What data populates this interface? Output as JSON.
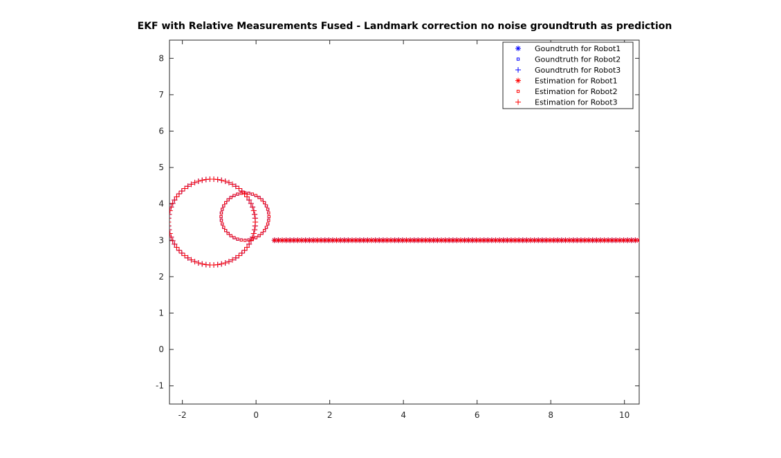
{
  "chart_data": {
    "type": "scatter",
    "title": "EKF with Relative Measurements Fused - Landmark correction no noise groundtruth as prediction",
    "xlabel": "",
    "ylabel": "",
    "xlim": [
      -2.35,
      10.4
    ],
    "ylim": [
      -1.5,
      8.5
    ],
    "x_ticks": [
      -2,
      0,
      2,
      4,
      6,
      8,
      10
    ],
    "y_ticks": [
      -1,
      0,
      1,
      2,
      3,
      4,
      5,
      6,
      7,
      8
    ],
    "grid": false,
    "legend_position": "top-right",
    "colors": {
      "groundtruth": "#0000ff",
      "estimation": "#ff0000"
    },
    "robot1_path": {
      "kind": "line",
      "x_start": 0.5,
      "x_end": 10.4,
      "y": 3.0,
      "points": 95
    },
    "robot2_path": {
      "kind": "circle",
      "center": [
        -0.3,
        3.65
      ],
      "radius": 0.65,
      "points": 40
    },
    "robot3_path": {
      "kind": "circle",
      "center": [
        -1.2,
        3.5
      ],
      "radius": 1.18,
      "points": 70
    },
    "series": [
      {
        "name": "Goundtruth for Robot1",
        "marker": "asterisk",
        "color": "#0000ff",
        "path": "robot1_path"
      },
      {
        "name": "Goundtruth for Robot2",
        "marker": "square",
        "color": "#0000ff",
        "path": "robot2_path"
      },
      {
        "name": "Goundtruth for Robot3",
        "marker": "plus",
        "color": "#0000ff",
        "path": "robot3_path"
      },
      {
        "name": "Estimation for Robot1",
        "marker": "asterisk",
        "color": "#ff0000",
        "path": "robot1_path"
      },
      {
        "name": "Estimation for Robot2",
        "marker": "square",
        "color": "#ff0000",
        "path": "robot2_path"
      },
      {
        "name": "Estimation for Robot3",
        "marker": "plus",
        "color": "#ff0000",
        "path": "robot3_path"
      }
    ]
  }
}
